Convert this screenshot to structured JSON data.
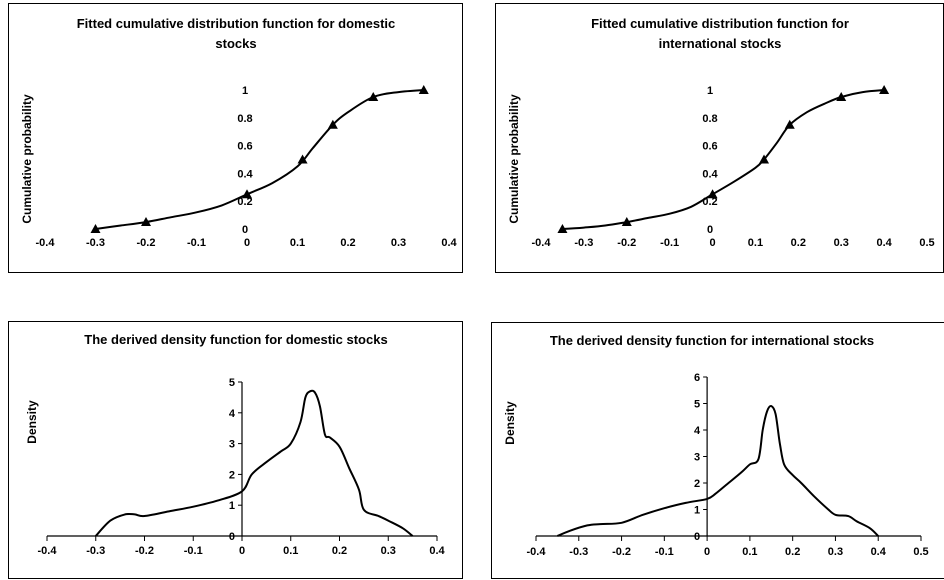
{
  "chart_data": [
    {
      "id": "cdf-domestic",
      "type": "line",
      "title": "Fitted cumulative distribution function for domestic stocks",
      "title_lines": [
        "Fitted cumulative distribution function for domestic",
        "stocks"
      ],
      "xlabel": "",
      "ylabel": "Cumulative probability",
      "xlim": [
        -0.4,
        0.4
      ],
      "ylim": [
        0,
        1
      ],
      "xticks": [
        "-0.4",
        "-0.3",
        "-0.2",
        "-0.1",
        "0",
        "0.1",
        "0.2",
        "0.3",
        "0.4"
      ],
      "yticks": [
        "0",
        "0.2",
        "0.4",
        "0.6",
        "0.8",
        "1"
      ],
      "grid": false,
      "legend": "none",
      "markers": {
        "x": [
          -0.3,
          -0.2,
          0.0,
          0.11,
          0.17,
          0.25,
          0.35
        ],
        "y": [
          0.0,
          0.05,
          0.25,
          0.5,
          0.75,
          0.95,
          1.0
        ]
      },
      "curve": {
        "x": [
          -0.3,
          -0.25,
          -0.2,
          -0.15,
          -0.1,
          -0.05,
          0.0,
          0.05,
          0.1,
          0.13,
          0.17,
          0.2,
          0.25,
          0.3,
          0.35
        ],
        "y": [
          0.0,
          0.025,
          0.05,
          0.085,
          0.12,
          0.17,
          0.25,
          0.33,
          0.45,
          0.58,
          0.75,
          0.84,
          0.95,
          0.985,
          1.0
        ]
      }
    },
    {
      "id": "cdf-international",
      "type": "line",
      "title": "Fitted cumulative distribution function for international stocks",
      "title_lines": [
        "Fitted cumulative distribution function for",
        "international stocks"
      ],
      "xlabel": "",
      "ylabel": "Cumulative probability",
      "xlim": [
        -0.4,
        0.5
      ],
      "ylim": [
        0,
        1
      ],
      "xticks": [
        "-0.4",
        "-0.3",
        "-0.2",
        "-0.1",
        "0",
        "0.1",
        "0.2",
        "0.3",
        "0.4",
        "0.5"
      ],
      "yticks": [
        "0",
        "0.2",
        "0.4",
        "0.6",
        "0.8",
        "1"
      ],
      "grid": false,
      "legend": "none",
      "markers": {
        "x": [
          -0.35,
          -0.2,
          0.0,
          0.12,
          0.18,
          0.3,
          0.4
        ],
        "y": [
          0.0,
          0.05,
          0.25,
          0.5,
          0.75,
          0.95,
          1.0
        ]
      },
      "curve": {
        "x": [
          -0.35,
          -0.3,
          -0.25,
          -0.2,
          -0.15,
          -0.1,
          -0.05,
          0.0,
          0.05,
          0.1,
          0.12,
          0.15,
          0.18,
          0.22,
          0.26,
          0.3,
          0.35,
          0.4
        ],
        "y": [
          0.0,
          0.01,
          0.025,
          0.05,
          0.08,
          0.11,
          0.16,
          0.25,
          0.34,
          0.44,
          0.5,
          0.62,
          0.75,
          0.84,
          0.9,
          0.95,
          0.985,
          1.0
        ]
      }
    },
    {
      "id": "density-domestic",
      "type": "line",
      "title": "The derived density function for domestic stocks",
      "xlabel": "",
      "ylabel": "Density",
      "xlim": [
        -0.4,
        0.4
      ],
      "ylim": [
        0,
        5
      ],
      "xticks": [
        "-0.4",
        "-0.3",
        "-0.2",
        "-0.1",
        "0",
        "0.1",
        "0.2",
        "0.3",
        "0.4"
      ],
      "yticks": [
        "0",
        "1",
        "2",
        "3",
        "4",
        "5"
      ],
      "grid": false,
      "legend": "none",
      "curve": {
        "x": [
          -0.3,
          -0.27,
          -0.24,
          -0.22,
          -0.2,
          -0.15,
          -0.1,
          -0.05,
          0.0,
          0.02,
          0.05,
          0.08,
          0.1,
          0.12,
          0.13,
          0.14,
          0.15,
          0.16,
          0.17,
          0.18,
          0.2,
          0.22,
          0.24,
          0.25,
          0.28,
          0.3,
          0.33,
          0.35
        ],
        "y": [
          0.0,
          0.5,
          0.7,
          0.7,
          0.65,
          0.8,
          0.95,
          1.15,
          1.45,
          2.0,
          2.4,
          2.75,
          3.0,
          3.7,
          4.5,
          4.7,
          4.65,
          4.2,
          3.3,
          3.2,
          2.9,
          2.2,
          1.5,
          0.85,
          0.65,
          0.5,
          0.25,
          0.0
        ]
      }
    },
    {
      "id": "density-international",
      "type": "line",
      "title": "The derived density function for international stocks",
      "xlabel": "",
      "ylabel": "Density",
      "xlim": [
        -0.4,
        0.5
      ],
      "ylim": [
        0,
        6
      ],
      "xticks": [
        "-0.4",
        "-0.3",
        "-0.2",
        "-0.1",
        "0",
        "0.1",
        "0.2",
        "0.3",
        "0.4",
        "0.5"
      ],
      "yticks": [
        "0",
        "1",
        "2",
        "3",
        "4",
        "5",
        "6"
      ],
      "grid": false,
      "legend": "none",
      "curve": {
        "x": [
          -0.35,
          -0.32,
          -0.28,
          -0.25,
          -0.2,
          -0.15,
          -0.1,
          -0.05,
          0.0,
          0.02,
          0.05,
          0.08,
          0.1,
          0.12,
          0.13,
          0.14,
          0.15,
          0.16,
          0.17,
          0.18,
          0.2,
          0.22,
          0.25,
          0.28,
          0.3,
          0.33,
          0.35,
          0.38,
          0.4
        ],
        "y": [
          0.0,
          0.2,
          0.4,
          0.45,
          0.5,
          0.8,
          1.05,
          1.25,
          1.4,
          1.6,
          2.0,
          2.4,
          2.7,
          2.9,
          4.0,
          4.7,
          4.9,
          4.6,
          3.5,
          2.7,
          2.3,
          2.0,
          1.5,
          1.05,
          0.8,
          0.75,
          0.55,
          0.3,
          0.0
        ]
      }
    }
  ]
}
